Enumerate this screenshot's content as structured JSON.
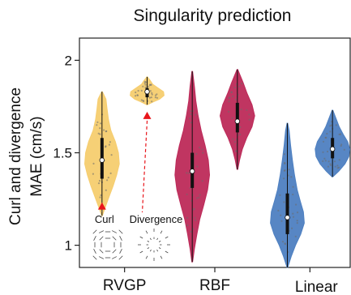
{
  "chart_data": {
    "type": "violin",
    "title": "Singularity prediction",
    "ylabel": "Curl and divergence\nMAE (cm/s)",
    "ylim": [
      0.88,
      2.12
    ],
    "yticks": [
      {
        "value": 1,
        "label": "1"
      },
      {
        "value": 1.5,
        "label": "1.5"
      },
      {
        "value": 2,
        "label": "2"
      }
    ],
    "groups": [
      {
        "label": "RVGP",
        "pos": 1.5
      },
      {
        "label": "RBF",
        "pos": 3.5
      },
      {
        "label": "Linear",
        "pos": 5.5
      }
    ],
    "violins": [
      {
        "name": "RVGP curl",
        "pos": 1,
        "color": "#f6cd6f",
        "min": 1.16,
        "q1": 1.36,
        "median": 1.46,
        "q3": 1.58,
        "max": 1.83,
        "profile": [
          [
            1.16,
            0.02
          ],
          [
            1.2,
            0.16
          ],
          [
            1.25,
            0.35
          ],
          [
            1.32,
            0.62
          ],
          [
            1.38,
            0.82
          ],
          [
            1.44,
            0.97
          ],
          [
            1.5,
            0.92
          ],
          [
            1.56,
            0.75
          ],
          [
            1.62,
            0.5
          ],
          [
            1.68,
            0.36
          ],
          [
            1.74,
            0.28
          ],
          [
            1.79,
            0.22
          ],
          [
            1.83,
            0.02
          ]
        ]
      },
      {
        "name": "RVGP divergence",
        "pos": 2,
        "color": "#f6cd6f",
        "min": 1.76,
        "q1": 1.8,
        "median": 1.83,
        "q3": 1.85,
        "max": 1.91,
        "profile": [
          [
            1.76,
            0.02
          ],
          [
            1.775,
            0.35
          ],
          [
            1.79,
            0.7
          ],
          [
            1.81,
            0.95
          ],
          [
            1.83,
            0.92
          ],
          [
            1.85,
            0.62
          ],
          [
            1.87,
            0.32
          ],
          [
            1.89,
            0.18
          ],
          [
            1.91,
            0.02
          ]
        ]
      },
      {
        "name": "RBF curl",
        "pos": 3,
        "color": "#bd2a59",
        "min": 0.91,
        "q1": 1.31,
        "median": 1.4,
        "q3": 1.5,
        "max": 1.94,
        "profile": [
          [
            0.91,
            0.02
          ],
          [
            0.98,
            0.12
          ],
          [
            1.06,
            0.26
          ],
          [
            1.14,
            0.42
          ],
          [
            1.22,
            0.65
          ],
          [
            1.3,
            0.86
          ],
          [
            1.38,
            0.97
          ],
          [
            1.46,
            0.9
          ],
          [
            1.54,
            0.72
          ],
          [
            1.62,
            0.5
          ],
          [
            1.7,
            0.33
          ],
          [
            1.78,
            0.2
          ],
          [
            1.86,
            0.12
          ],
          [
            1.94,
            0.02
          ]
        ]
      },
      {
        "name": "RBF divergence",
        "pos": 4,
        "color": "#bd2a59",
        "min": 1.41,
        "q1": 1.61,
        "median": 1.67,
        "q3": 1.77,
        "max": 1.95,
        "profile": [
          [
            1.41,
            0.02
          ],
          [
            1.46,
            0.12
          ],
          [
            1.52,
            0.28
          ],
          [
            1.58,
            0.52
          ],
          [
            1.64,
            0.82
          ],
          [
            1.7,
            0.97
          ],
          [
            1.76,
            0.82
          ],
          [
            1.82,
            0.55
          ],
          [
            1.88,
            0.32
          ],
          [
            1.95,
            0.02
          ]
        ]
      },
      {
        "name": "Linear curl",
        "pos": 5,
        "color": "#4e80c1",
        "min": 0.88,
        "q1": 1.06,
        "median": 1.15,
        "q3": 1.28,
        "max": 1.66,
        "profile": [
          [
            0.88,
            0.02
          ],
          [
            0.94,
            0.22
          ],
          [
            1.0,
            0.46
          ],
          [
            1.06,
            0.75
          ],
          [
            1.12,
            0.95
          ],
          [
            1.18,
            0.9
          ],
          [
            1.24,
            0.72
          ],
          [
            1.3,
            0.55
          ],
          [
            1.38,
            0.4
          ],
          [
            1.46,
            0.28
          ],
          [
            1.54,
            0.18
          ],
          [
            1.62,
            0.1
          ],
          [
            1.66,
            0.02
          ]
        ]
      },
      {
        "name": "Linear divergence",
        "pos": 6,
        "color": "#4e80c1",
        "min": 1.37,
        "q1": 1.47,
        "median": 1.52,
        "q3": 1.58,
        "max": 1.73,
        "profile": [
          [
            1.37,
            0.02
          ],
          [
            1.4,
            0.35
          ],
          [
            1.44,
            0.7
          ],
          [
            1.48,
            0.92
          ],
          [
            1.52,
            0.97
          ],
          [
            1.56,
            0.85
          ],
          [
            1.6,
            0.6
          ],
          [
            1.64,
            0.38
          ],
          [
            1.68,
            0.22
          ],
          [
            1.73,
            0.02
          ]
        ]
      }
    ],
    "annotations": [
      {
        "text": "Curl",
        "icon": "curl-field-icon",
        "marker": "red-triangle",
        "marker_value": 1.21
      },
      {
        "text": "Divergence",
        "icon": "divergence-field-icon",
        "marker": "red-triangle",
        "marker_value": 1.7
      }
    ],
    "marker_color": "#e8151b",
    "grid": false,
    "legend": "none"
  }
}
